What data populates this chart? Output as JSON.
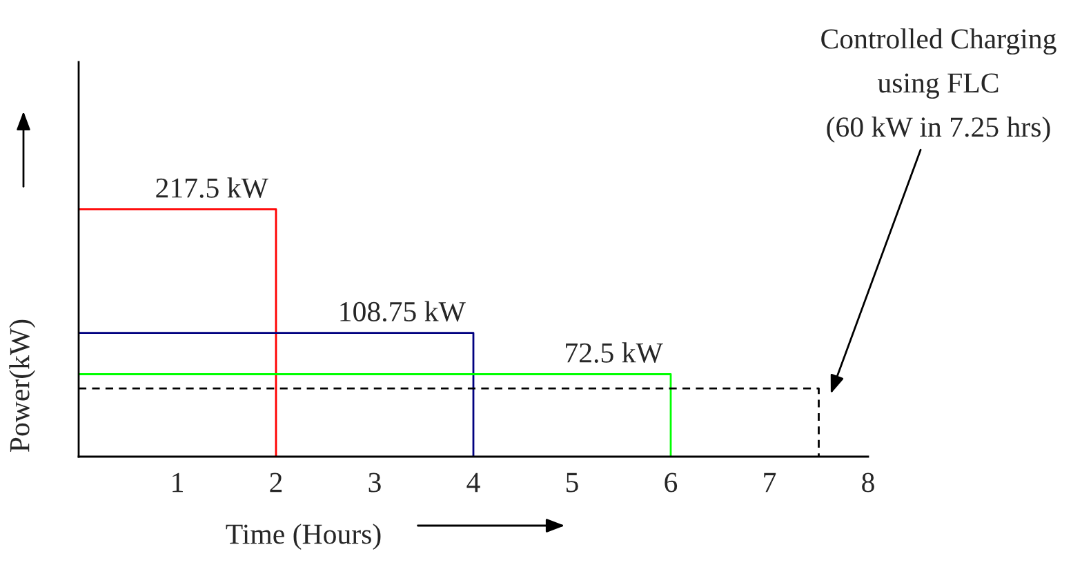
{
  "chart_data": {
    "type": "line",
    "xlabel": "Time (Hours)",
    "ylabel": "Power(kW)",
    "xlim": [
      0,
      8
    ],
    "xticks": [
      1,
      2,
      3,
      4,
      5,
      6,
      7,
      8
    ],
    "ylim": [
      0,
      347
    ],
    "tick_labels": "x",
    "grid": false,
    "legend": false,
    "marker": "none",
    "series": [
      {
        "color": "#ff0000",
        "x": [
          0,
          2,
          2
        ],
        "values": [
          217.5,
          217.5,
          0
        ],
        "value_labels": [
          null,
          "217.5 kW",
          null
        ]
      },
      {
        "color": "#000080",
        "x": [
          0,
          4,
          4
        ],
        "values": [
          108.75,
          108.75,
          0
        ],
        "value_labels": [
          null,
          "108.75 kW",
          null
        ]
      },
      {
        "color": "#00ff00",
        "x": [
          0,
          6,
          6
        ],
        "values": [
          72.5,
          72.5,
          0
        ],
        "value_labels": [
          null,
          "72.5 kW",
          null
        ]
      },
      {
        "color": "#000000",
        "line_style": "dashed",
        "x": [
          0,
          7.5,
          7.5
        ],
        "values": [
          60,
          60,
          0
        ]
      }
    ],
    "annotations": [
      "Controlled Charging\nusing FLC\n(60 kW in 7.25 hrs)"
    ]
  }
}
